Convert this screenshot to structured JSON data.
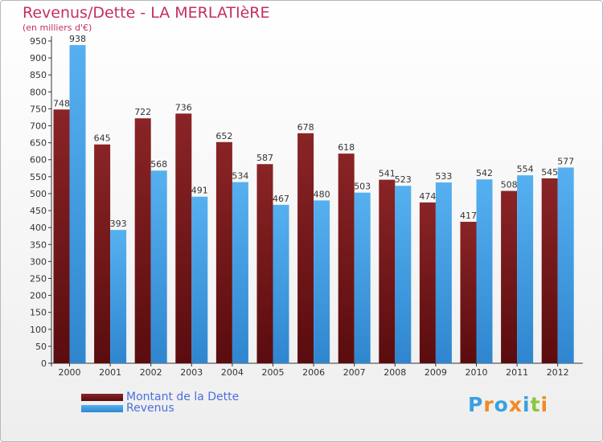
{
  "title": "Revenus/Dette - LA MERLATIèRE",
  "subtitle": "(en milliers d'€)",
  "logo": {
    "text": "Proxiti",
    "letter_colors": [
      "#3aa0e0",
      "#f08a24",
      "#3aa0e0",
      "#f08a24",
      "#3aa0e0",
      "#8cc63f",
      "#f08a24"
    ]
  },
  "colors": {
    "dette": "#7a1618",
    "revenus": "#3f9de3",
    "accent": "#c4305e"
  },
  "chart_data": {
    "type": "bar",
    "title": "Revenus/Dette - LA MERLATIèRE",
    "ylabel": "(en milliers d'€)",
    "xlabel": "",
    "ylim": [
      0,
      950
    ],
    "ytick_step": 50,
    "grid": false,
    "legend_position": "bottom-left",
    "categories": [
      "2000",
      "2001",
      "2002",
      "2003",
      "2004",
      "2005",
      "2006",
      "2007",
      "2008",
      "2009",
      "2010",
      "2011",
      "2012"
    ],
    "series": [
      {
        "name": "Montant de la Dette",
        "values": [
          748,
          645,
          722,
          736,
          652,
          587,
          678,
          618,
          541,
          474,
          417,
          508,
          545
        ]
      },
      {
        "name": "Revenus",
        "values": [
          938,
          393,
          568,
          491,
          534,
          467,
          480,
          503,
          523,
          533,
          542,
          554,
          577
        ]
      }
    ]
  }
}
